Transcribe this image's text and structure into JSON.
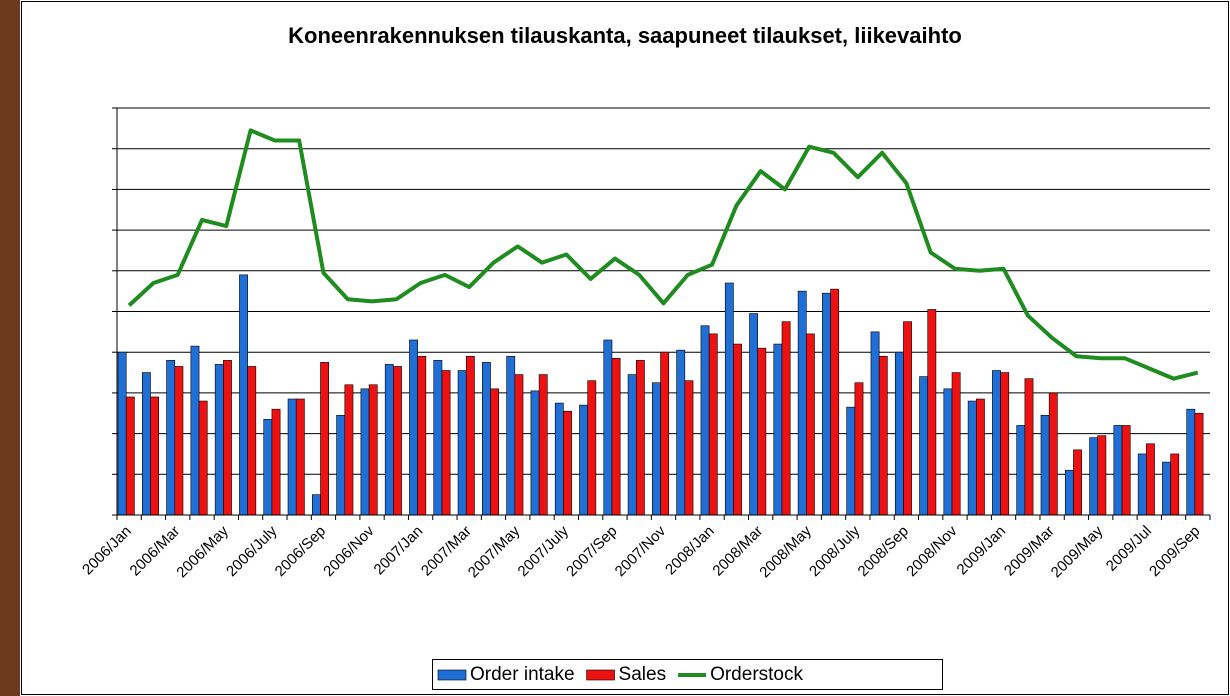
{
  "chart_data": {
    "type": "bar_line",
    "title": "Koneenrakennuksen tilauskanta, saapuneet tilaukset, liikevaihto",
    "categories": [
      "2006/Jan",
      null,
      "2006/Mar",
      null,
      "2006/May",
      null,
      "2006/July",
      null,
      "2006/Sep",
      null,
      "2006/Nov",
      null,
      "2007/Jan",
      null,
      "2007/Mar",
      null,
      "2007/May",
      null,
      "2007/July",
      null,
      "2007/Sep",
      null,
      "2007/Nov",
      null,
      "2008/Jan",
      null,
      "2008/Mar",
      null,
      "2008/May",
      null,
      "2008/July",
      null,
      "2008/Sep",
      null,
      "2008/Nov",
      null,
      "2009/Jan",
      null,
      "2009/Mar",
      null,
      "2009/May",
      null,
      "2009/Jul",
      null,
      "2009/Sep"
    ],
    "series": [
      {
        "name": "Order intake",
        "type": "bar",
        "color": "#1f6fd6",
        "values": [
          4.0,
          3.5,
          3.8,
          4.15,
          3.7,
          5.9,
          2.35,
          2.85,
          0.5,
          2.45,
          3.1,
          3.7,
          4.3,
          3.8,
          3.55,
          3.75,
          3.9,
          3.05,
          2.75,
          2.7,
          4.3,
          3.45,
          3.25,
          4.05,
          4.65,
          5.7,
          4.95,
          4.2,
          5.5,
          5.45,
          2.65,
          4.5,
          4.0,
          3.4,
          3.1,
          2.8,
          3.55,
          2.2,
          2.45,
          1.1,
          1.9,
          2.2,
          1.5,
          1.3,
          2.6
        ]
      },
      {
        "name": "Sales",
        "type": "bar",
        "color": "#ee1111",
        "values": [
          2.9,
          2.9,
          3.65,
          2.8,
          3.8,
          3.65,
          2.6,
          2.85,
          3.75,
          3.2,
          3.2,
          3.65,
          3.9,
          3.55,
          3.9,
          3.1,
          3.45,
          3.45,
          2.55,
          3.3,
          3.85,
          3.8,
          4.0,
          3.3,
          4.45,
          4.2,
          4.1,
          4.75,
          4.45,
          5.55,
          3.25,
          3.9,
          4.75,
          5.05,
          3.5,
          2.85,
          3.5,
          3.35,
          3.0,
          1.6,
          1.95,
          2.2,
          1.75,
          1.5,
          2.5
        ]
      },
      {
        "name": "Orderstock",
        "type": "line",
        "color": "#1e8c1e",
        "values": [
          5.15,
          5.7,
          5.9,
          7.25,
          7.1,
          9.45,
          9.2,
          9.2,
          5.95,
          5.3,
          5.25,
          5.3,
          5.7,
          5.9,
          5.6,
          6.2,
          6.6,
          6.2,
          6.4,
          5.8,
          6.3,
          5.9,
          5.2,
          5.9,
          6.15,
          7.6,
          8.45,
          8.0,
          9.05,
          8.9,
          8.3,
          8.9,
          8.15,
          6.45,
          6.05,
          6.0,
          6.05,
          4.9,
          4.35,
          3.9,
          3.85,
          3.85,
          3.6,
          3.35,
          3.5
        ]
      }
    ],
    "ylim": [
      0,
      10
    ],
    "yticks": [
      0,
      1,
      2,
      3,
      4,
      5,
      6,
      7,
      8,
      9,
      10
    ],
    "grid": true,
    "legend": "bottom"
  }
}
